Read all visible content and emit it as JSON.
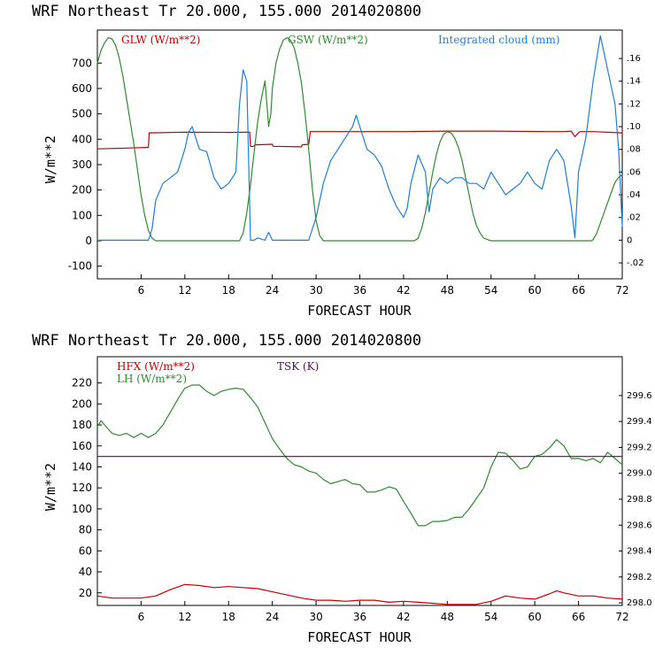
{
  "chart_data": [
    {
      "type": "line",
      "title": "WRF  Northeast Tr  20.000, 155.000  2014020800",
      "xlabel": "FORECAST HOUR",
      "ylabel": "W/m**2",
      "xlim": [
        0,
        72
      ],
      "ylim": [
        -150,
        830
      ],
      "xticks": [
        "6",
        "12",
        "18",
        "24",
        "30",
        "36",
        "42",
        "48",
        "54",
        "60",
        "66",
        "72"
      ],
      "yticks": [
        "-100",
        "0",
        "100",
        "200",
        "300",
        "400",
        "500",
        "600",
        "700"
      ],
      "y2lim": [
        -0.034,
        0.185
      ],
      "y2ticks": [
        "-.02",
        "0",
        ".02",
        ".04",
        ".06",
        ".08",
        ".10",
        ".12",
        ".14",
        ".16"
      ],
      "series": [
        {
          "name": "GLW (W/m**2)",
          "axis": "left",
          "color": "#c00000",
          "x": [
            0,
            4,
            7,
            7.1,
            12,
            18,
            20.9,
            21,
            21.5,
            21.6,
            24,
            24.1,
            28,
            28.1,
            29,
            29.2,
            36,
            42,
            48,
            54,
            62,
            64,
            65,
            65.5,
            66,
            66.2,
            68,
            72
          ],
          "y": [
            362,
            365,
            368,
            425,
            428,
            427,
            428,
            372,
            372,
            378,
            380,
            372,
            370,
            378,
            380,
            430,
            430,
            430,
            432,
            432,
            430,
            430,
            432,
            410,
            425,
            430,
            430,
            425
          ]
        },
        {
          "name": "GSW (W/m**2)",
          "axis": "left",
          "color": "#2e8b2e",
          "x": [
            0,
            0.5,
            1,
            1.5,
            2,
            2.5,
            3,
            3.5,
            4,
            4.5,
            5,
            5.5,
            6,
            6.5,
            7,
            7.5,
            8,
            19.5,
            20,
            20.5,
            21,
            21.5,
            22,
            22.5,
            23,
            23.5,
            23.6,
            23.8,
            24,
            24.5,
            25,
            25.5,
            26,
            26.5,
            27,
            27.5,
            28,
            28.5,
            29,
            29.5,
            30,
            30.5,
            31,
            43.5,
            44,
            44.5,
            45,
            45.5,
            46,
            46.5,
            47,
            47.5,
            48,
            48.5,
            49,
            49.5,
            50,
            50.5,
            51,
            51.5,
            52,
            52.5,
            53,
            53.5,
            54,
            54.5,
            55,
            55.5,
            56,
            67.8,
            68,
            68.5,
            69,
            69.5,
            70,
            70.5,
            71,
            71.5,
            72
          ],
          "y": [
            700,
            750,
            780,
            800,
            795,
            770,
            720,
            650,
            560,
            470,
            380,
            280,
            180,
            100,
            40,
            10,
            0,
            0,
            30,
            110,
            220,
            350,
            470,
            560,
            630,
            450,
            470,
            500,
            600,
            700,
            755,
            790,
            800,
            790,
            760,
            700,
            620,
            500,
            360,
            200,
            80,
            20,
            0,
            0,
            10,
            50,
            110,
            190,
            270,
            340,
            390,
            420,
            430,
            425,
            405,
            370,
            320,
            250,
            180,
            110,
            60,
            30,
            10,
            5,
            0,
            0,
            0,
            0,
            0,
            0,
            5,
            30,
            70,
            110,
            150,
            190,
            230,
            250,
            260
          ]
        },
        {
          "name": "Integrated cloud (mm)",
          "axis": "right",
          "color": "#1e7fd6",
          "x": [
            0,
            7,
            7.5,
            8,
            9,
            10,
            11,
            12,
            12.5,
            13,
            14,
            15,
            16,
            17,
            18,
            19,
            19.5,
            20,
            20.5,
            21,
            21.5,
            22,
            23,
            23.5,
            24,
            25,
            26,
            27,
            28,
            29,
            30,
            31,
            32,
            33,
            34,
            35,
            35.5,
            36,
            37,
            38,
            39,
            40,
            41,
            42,
            42.5,
            43,
            44,
            45,
            45.5,
            46,
            47,
            48,
            49,
            50,
            51,
            52,
            53,
            54,
            55,
            56,
            57,
            58,
            59,
            60,
            61,
            62,
            63,
            64,
            65,
            65.5,
            66,
            67,
            68,
            69,
            70,
            71,
            71.5,
            72
          ],
          "y": [
            0,
            0,
            0.01,
            0.035,
            0.05,
            0.055,
            0.06,
            0.08,
            0.095,
            0.1,
            0.08,
            0.078,
            0.055,
            0.045,
            0.05,
            0.06,
            0.12,
            0.15,
            0.14,
            0.0,
            0.0,
            0.002,
            0.0,
            0.007,
            0.0,
            0.0,
            0.0,
            0.0,
            0.0,
            0.0,
            0.02,
            0.05,
            0.07,
            0.08,
            0.09,
            0.1,
            0.11,
            0.1,
            0.08,
            0.075,
            0.065,
            0.045,
            0.03,
            0.02,
            0.028,
            0.05,
            0.075,
            0.06,
            0.025,
            0.045,
            0.055,
            0.05,
            0.055,
            0.055,
            0.05,
            0.05,
            0.045,
            0.06,
            0.05,
            0.04,
            0.045,
            0.05,
            0.06,
            0.05,
            0.045,
            0.07,
            0.08,
            0.07,
            0.03,
            0.002,
            0.06,
            0.09,
            0.14,
            0.18,
            0.15,
            0.12,
            0.08,
            0.012
          ]
        }
      ]
    },
    {
      "type": "line",
      "title": "WRF  Northeast Tr  20.000, 155.000  2014020800",
      "xlabel": "FORECAST HOUR",
      "ylabel": "W/m**2",
      "xlim": [
        0,
        72
      ],
      "ylim": [
        8,
        245
      ],
      "xticks": [
        "6",
        "12",
        "18",
        "24",
        "30",
        "36",
        "42",
        "48",
        "54",
        "60",
        "66",
        "72"
      ],
      "yticks": [
        "20",
        "40",
        "60",
        "80",
        "100",
        "120",
        "140",
        "160",
        "180",
        "200",
        "220"
      ],
      "y2lim": [
        297.98,
        299.9
      ],
      "y2ticks": [
        "298.0",
        "298.2",
        "298.4",
        "298.6",
        "298.8",
        "299.0",
        "299.2",
        "299.4",
        "299.6"
      ],
      "series": [
        {
          "name": "HFX (W/m**2)",
          "axis": "left",
          "color": "#c00000",
          "x": [
            0,
            2,
            4,
            6,
            8,
            10,
            12,
            14,
            16,
            18,
            20,
            22,
            24,
            26,
            28,
            30,
            32,
            34,
            36,
            38,
            40,
            42,
            44,
            46,
            48,
            50,
            52,
            54,
            56,
            58,
            60,
            62,
            63,
            64,
            66,
            68,
            70,
            72
          ],
          "y": [
            17,
            15,
            15,
            15,
            17,
            23,
            28,
            27,
            25,
            26,
            25,
            24,
            21,
            18,
            15,
            13,
            13,
            12,
            13,
            13,
            11,
            12,
            11,
            10,
            9,
            9,
            9,
            12,
            17,
            15,
            14,
            19,
            22,
            20,
            17,
            17,
            15,
            14
          ]
        },
        {
          "name": "LH (W/m**2)",
          "axis": "left",
          "color": "#2e8b2e",
          "x": [
            0,
            0.5,
            1,
            2,
            3,
            4,
            5,
            6,
            7,
            8,
            9,
            10,
            11,
            12,
            13,
            14,
            15,
            16,
            17,
            18,
            19,
            20,
            21,
            22,
            23,
            24,
            25,
            26,
            27,
            28,
            29,
            30,
            31,
            32,
            33,
            34,
            35,
            36,
            37,
            38,
            39,
            40,
            41,
            42,
            43,
            44,
            45,
            46,
            47,
            48,
            49,
            50,
            51,
            52,
            53,
            54,
            55,
            56,
            57,
            58,
            59,
            60,
            61,
            62,
            63,
            64,
            65,
            66,
            67,
            68,
            69,
            70,
            71,
            72
          ],
          "y": [
            178,
            184,
            180,
            172,
            170,
            172,
            168,
            172,
            168,
            172,
            180,
            192,
            204,
            215,
            218,
            218,
            212,
            208,
            212,
            214,
            215,
            214,
            206,
            197,
            182,
            167,
            157,
            148,
            142,
            140,
            136,
            134,
            128,
            124,
            126,
            128,
            124,
            123,
            116,
            116,
            118,
            121,
            119,
            107,
            96,
            84,
            84,
            88,
            88,
            89,
            92,
            92,
            100,
            110,
            120,
            140,
            154,
            153,
            146,
            138,
            140,
            150,
            152,
            158,
            166,
            160,
            148,
            148,
            146,
            148,
            144,
            154,
            148,
            142
          ]
        },
        {
          "name": "TSK (K)",
          "axis": "right",
          "color": "#5a0a5a",
          "x": [
            0,
            72
          ],
          "y": [
            299.13,
            299.13
          ]
        }
      ]
    }
  ]
}
